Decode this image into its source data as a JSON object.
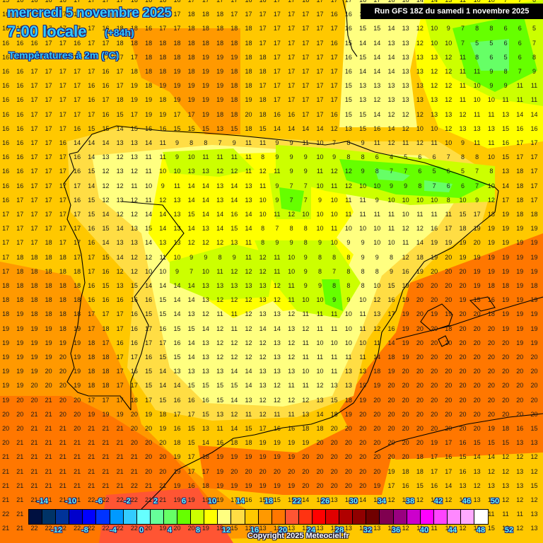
{
  "header": {
    "date": "mercredi 5 novembre 2025",
    "time": "7:00 locale",
    "lead": "(+84h)",
    "variable": "Températures à 2m (°C)",
    "run": "Run GFS 18Z du samedi 1 novembre 2025"
  },
  "footer": {
    "copyright": "Copyright 2025 Meteociel.fr"
  },
  "legend": {
    "colors": [
      "#001040",
      "#003366",
      "#003399",
      "#0000cc",
      "#0000ff",
      "#0033ff",
      "#0099ff",
      "#33ccff",
      "#66ffff",
      "#66ff99",
      "#66ff66",
      "#66ff00",
      "#ccff00",
      "#ffff00",
      "#ffff80",
      "#ffdd44",
      "#ffc800",
      "#ff9900",
      "#ff7700",
      "#ff5533",
      "#ff3311",
      "#ff0000",
      "#e00000",
      "#b00000",
      "#900000",
      "#700000",
      "#800050",
      "#990080",
      "#cc00cc",
      "#ff00ff",
      "#ff44ff",
      "#ff88ff",
      "#ffaaff",
      "#ffffff"
    ],
    "top_labels": [
      "-14",
      "-10",
      "-6",
      "-2",
      "2",
      "6",
      "10",
      "14",
      "18",
      "22",
      "26",
      "30",
      "34",
      "38",
      "42",
      "46",
      "50"
    ],
    "bottom_labels": [
      "-12",
      "-8",
      "-4",
      "0",
      "4",
      "8",
      "12",
      "16",
      "20",
      "24",
      "28",
      "32",
      "36",
      "40",
      "44",
      "48",
      "52"
    ]
  },
  "map": {
    "region": "Iberian Peninsula",
    "unit": "°C",
    "grid_rows": [
      "15 16 16 16 16 17 17 17 17 16 16 16 16 17 17 17 17 16 16 17 17 16 17 17 17 16 17 16 16 14 14 13 11 10 10 7 7 6",
      "16 18 16 17 17 17 17 17 17 16 16 17 17 18 18 18 17 17 17 17 17 17 17 16 16 15 15 14 13 11 10 10 8 8 10 7 7 6",
      "16 16 16 17 17 17 17 16 18 18 16 17 17 18 18 18 18 18 17 17 17 17 17 17 16 15 15 14 13 12 10 9 7 8 8 6 6 5",
      "16 16 16 17 17 16 17 17 18 18 18 18 18 18 18 18 18 18 17 17 17 17 17 16 15 14 14 13 13 12 10 10 7 5 5 6 6 7",
      "16 16 17 17 17 17 17 17 17 17 18 18 18 18 19 19 19 18 18 17 17 17 17 17 16 15 14 14 13 13 13 12 11 8 6 5 6 8",
      "16 16 17 17 17 17 17 16 17 18 18 18 19 18 19 19 18 18 18 17 17 17 17 17 16 14 14 14 13 13 12 12 11 11 9 8 7 9",
      "16 16 17 17 17 17 16 16 17 19 18 19 19 19 19 19 18 18 17 17 17 17 17 17 15 13 13 13 13 13 12 12 11 10 9 9 11 11",
      "16 16 17 17 17 17 16 17 18 19 19 18 19 19 19 19 18 19 18 17 17 17 17 17 15 13 12 13 13 13 13 12 11 10 10 11 11 11",
      "16 16 17 17 17 17 17 16 15 17 19 19 17 17 19 18 18 20 18 16 16 17 17 16 15 15 14 12 12 12 13 13 12 11 11 13 14 14",
      "16 16 17 17 17 16 15 15 14 15 16 16 15 15 15 13 15 18 15 14 14 14 14 12 13 15 16 14 12 10 10 12 13 13 13 15 16 16",
      "16 16 17 17 16 14 14 14 13 13 14 11 9 8 8 7 9 11 11 9 9 11 10 7 8 9 11 12 11 12 11 10 9 11 11 16 17 17",
      "16 16 17 17 17 16 14 13 12 13 11 11 9 10 11 11 11 11 8 9 9 9 10 9 8 8 6 4 5 6 6 7 8 8 10 15 17 17",
      "16 16 17 17 17 16 15 12 13 12 11 10 10 13 13 12 12 11 12 11 9 9 11 12 12 9 8 7 7 6 5 6 5 7 8 13 18 17",
      "16 16 17 17 17 17 14 12 12 11 10 9 11 14 14 13 14 13 11 9 7 7 10 11 12 10 10 9 9 8 7 6 6 7 10 14 18 17",
      "16 17 17 17 17 16 15 12 13 12 11 12 13 14 14 13 14 13 10 9 7 7 9 10 11 11 9 10 10 10 10 8 10 9 12 17 18 17",
      "17 17 17 17 17 17 15 14 12 12 14 14 13 15 14 14 16 14 10 11 12 10 10 10 11 11 11 11 10 11 11 11 15 17 18 19 18 18",
      "17 17 17 17 17 17 16 15 14 13 15 14 13 14 13 14 15 14 8 7 8 8 10 11 10 10 10 11 12 12 16 17 18 19 19 19 19 19",
      "17 17 17 18 17 17 16 14 13 13 14 13 13 12 12 12 13 11 8 9 9 8 9 10 9 9 10 10 11 14 19 19 19 20 19 19 19 19",
      "17 18 18 18 18 17 17 15 14 12 12 11 10 9 9 8 9 11 12 11 10 9 8 8 8 9 9 8 12 18 19 20 19 19 19 19 19 19",
      "17 18 18 18 18 18 17 16 12 12 10 10 9 7 10 11 12 12 12 11 10 9 8 7 8 8 8 9 16 19 20 20 20 19 19 19 19 19",
      "18 18 18 18 18 18 16 15 13 15 14 14 14 14 13 13 13 13 13 12 11 9 9 8 8 8 10 15 19 20 20 20 20 19 18 18 19 18",
      "18 18 18 18 18 18 16 16 16 16 16 15 14 14 13 12 12 12 13 12 11 10 10 9 9 10 12 16 19 20 20 20 19 15 16 19 19 19",
      "18 19 18 18 18 18 17 17 17 16 15 15 14 13 12 11 11 12 13 13 12 11 11 11 10 11 13 17 19 20 19 19 20 20 18 19 19 19",
      "19 19 19 19 18 19 17 18 17 16 17 16 15 15 14 12 11 12 14 14 13 12 11 11 10 11 12 16 19 20 20 18 20 20 20 19 19 19",
      "19 19 19 19 19 19 18 17 16 16 17 17 16 14 13 12 12 12 12 13 12 11 10 10 10 10 11 14 19 20 20 20 20 20 20 20 19 19",
      "19 19 19 19 20 19 18 18 17 17 16 15 15 14 13 12 12 12 12 13 12 11 11 11 11 11 14 18 19 20 20 20 20 20 20 20 20 20",
      "19 19 19 20 20 19 18 18 17 16 15 14 13 13 13 13 14 14 13 13 13 10 10 11 13 13 18 19 20 20 20 20 20 20 20 20 20 20",
      "19 19 20 20 20 19 18 18 17 17 15 14 14 15 15 15 15 14 13 12 11 11 12 13 13 19 19 20 20 20 20 20 20 20 20 20 20 20",
      "19 20 20 21 20 20 17 17 17 18 17 15 16 16 16 15 14 13 12 12 12 12 13 15 18 19 20 20 20 20 20 20 20 20 20 20 20 20",
      "20 20 21 21 20 20 19 19 19 20 19 18 17 17 15 13 12 11 12 11 11 13 14 18 19 20 20 20 20 20 20 20 20 20 20 20 20 20",
      "20 20 21 21 21 20 21 21 21 20 20 19 16 15 13 11 14 15 17 16 16 18 18 20 20 20 20 20 20 20 20 20 20 20 19 18 16 15",
      "20 21 21 21 21 21 21 21 21 20 20 20 18 15 14 16 18 18 19 19 19 19 20 20 20 20 20 20 20 20 19 17 16 15 15 15 13 13",
      "21 21 21 21 21 21 21 21 21 21 20 20 19 17 18 19 19 19 19 19 19 20 20 20 20 20 20 20 20 18 17 16 15 14 14 12 12 12",
      "21 21 21 21 21 21 21 21 21 21 20 20 19 17 17 19 20 20 20 20 20 20 20 20 20 20 20 19 18 18 17 17 16 13 12 12 13 12",
      "21 21 21 21 21 21 21 21 21 22 21 21 19 16 18 19 19 19 19 19 19 20 20 20 20 20 19 17 16 15 16 14 13 12 13 13 13 15",
      "21 21 21 21 21 21 22 22 22 22 21 21 19 19 19 19 17 16 15 15 15 14 14 13 14 14 14 12 13 12 12 12 13 13 13 12 12 12",
      "22 21 21 21 22 22 22 22 22 22 21 21 20 19 19 19 18 15 14 15 15 15 14 14 12 13 12 12 12 13 13 11 11 12 11 11 11 13",
      "21 21 22 22 22 22 22 22 22 22 20 19 20 20 19 18 15 13 13 13 13 12 13 12 13 13 13 12 12 11 11 11 12 13 15 13 12 13"
    ]
  }
}
